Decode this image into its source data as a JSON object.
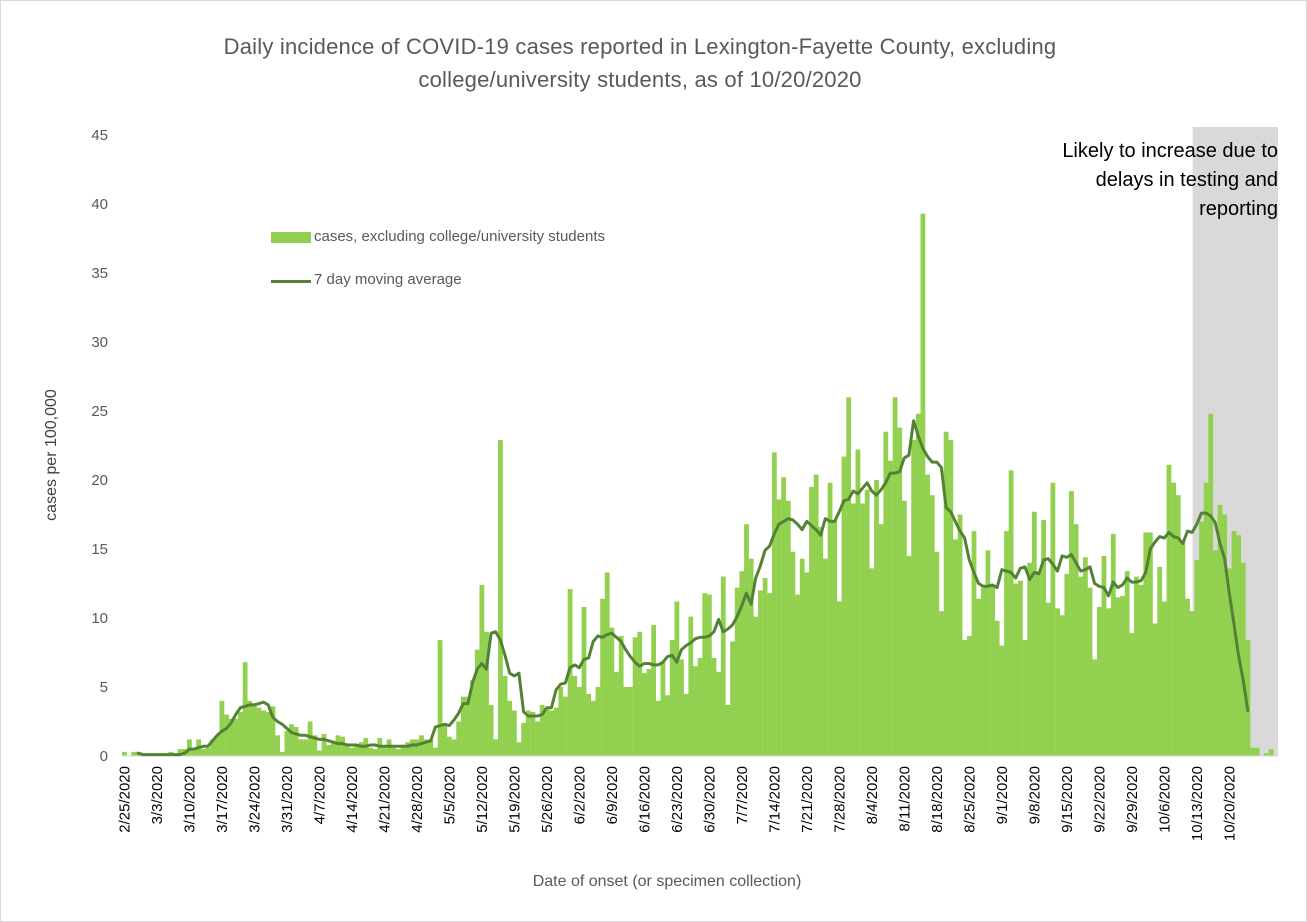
{
  "chart_data": {
    "type": "bar",
    "title": "Daily incidence of COVID-19 cases reported in Lexington-Fayette County, excluding college/university students, as of 10/20/2020",
    "title_lines": [
      "Daily incidence of COVID-19 cases reported in Lexington-Fayette County, excluding",
      "college/university students, as of 10/20/2020"
    ],
    "xlabel": "Date of onset (or specimen collection)",
    "ylabel": "cases per 100,000",
    "ylim": [
      0,
      45
    ],
    "yticks": [
      "0",
      "5",
      "10",
      "15",
      "20",
      "25",
      "30",
      "35",
      "40",
      "45"
    ],
    "x_start": "2/25/2020",
    "x_end": "10/20/2020",
    "xtick_labels": [
      "2/25/2020",
      "3/3/2020",
      "3/10/2020",
      "3/17/2020",
      "3/24/2020",
      "3/31/2020",
      "4/7/2020",
      "4/14/2020",
      "4/21/2020",
      "4/28/2020",
      "5/5/2020",
      "5/12/2020",
      "5/19/2020",
      "5/26/2020",
      "6/2/2020",
      "6/9/2020",
      "6/16/2020",
      "6/23/2020",
      "6/30/2020",
      "7/7/2020",
      "7/14/2020",
      "7/21/2020",
      "7/28/2020",
      "8/4/2020",
      "8/11/2020",
      "8/18/2020",
      "8/25/2020",
      "9/1/2020",
      "9/8/2020",
      "9/15/2020",
      "9/22/2020",
      "9/29/2020",
      "10/6/2020",
      "10/13/2020",
      "10/20/2020"
    ],
    "grid": false,
    "legend_position": "upper-left",
    "series": [
      {
        "name": "cases, excluding college/university students",
        "kind": "bar",
        "color": "#92d050",
        "values": [
          0.3,
          0,
          0.3,
          0.3,
          0,
          0,
          0,
          0,
          0.2,
          0,
          0.3,
          0,
          0.5,
          0.5,
          1.2,
          0.6,
          1.2,
          0.5,
          0.6,
          1.2,
          1.5,
          4,
          3,
          2.7,
          2.7,
          3.2,
          6.8,
          4,
          3.7,
          3.5,
          3.3,
          3.2,
          3.6,
          1.5,
          0.3,
          1.8,
          2.3,
          2.1,
          1.2,
          1.2,
          2.5,
          1.5,
          0.4,
          1.6,
          0.8,
          1,
          1.5,
          1.4,
          0.7,
          0.6,
          0.8,
          1,
          1.3,
          0.6,
          0.5,
          1.3,
          0.6,
          1.2,
          0.6,
          0.5,
          0.8,
          1,
          1.2,
          1.2,
          1.5,
          1.2,
          1.2,
          0.6,
          8.4,
          2.2,
          1.4,
          1.2,
          2.5,
          4.3,
          4.3,
          5.5,
          7.7,
          12.4,
          9,
          3.7,
          1.2,
          22.9,
          5.8,
          4,
          3.3,
          1,
          2.4,
          3.3,
          3.2,
          2.5,
          3.7,
          3.4,
          3.3,
          3.5,
          5,
          4.3,
          12.1,
          5.8,
          5,
          10.8,
          4.5,
          4,
          5,
          11.4,
          13.3,
          9.3,
          6.1,
          8.7,
          5,
          5,
          8.6,
          9,
          6,
          6.3,
          9.5,
          4,
          6.8,
          4.4,
          8.4,
          11.2,
          7,
          4.5,
          10.1,
          6.5,
          7.1,
          11.8,
          11.7,
          7.1,
          6.1,
          13,
          3.7,
          8.3,
          12.2,
          13.4,
          16.8,
          14.3,
          10.1,
          12,
          12.9,
          11.8,
          22,
          18.6,
          20.2,
          18.5,
          14.8,
          11.7,
          14.3,
          13.3,
          19.5,
          20.4,
          16.6,
          14.3,
          19.8,
          17.1,
          11.2,
          21.7,
          26,
          18.3,
          22.2,
          18.3,
          19.3,
          13.6,
          20,
          16.8,
          23.5,
          21.4,
          26,
          23.8,
          18.5,
          14.5,
          22.9,
          24.8,
          39.3,
          20.4,
          18.9,
          14.8,
          10.5,
          23.5,
          22.9,
          15.7,
          17.5,
          8.4,
          8.7,
          16.3,
          11.4,
          12.2,
          14.9,
          12.4,
          9.8,
          8,
          16.3,
          20.7,
          12.5,
          12.7,
          8.4,
          14,
          17.7,
          13.4,
          17.1,
          11.1,
          19.8,
          10.7,
          10.2,
          13.2,
          19.2,
          16.8,
          13,
          14.4,
          12.2,
          7,
          10.8,
          14.5,
          10.7,
          16.1,
          11.5,
          11.6,
          13.4,
          8.9,
          13,
          12.4,
          16.2,
          16.2,
          9.6,
          13.7,
          11.2,
          21.1,
          19.8,
          18.9,
          15.5,
          11.4,
          10.5,
          14.2,
          17,
          19.8,
          24.8,
          14.9,
          18.2,
          17.5,
          13.6,
          16.3,
          16,
          14,
          8.4,
          0.6,
          0.6,
          0,
          0.2,
          0.5,
          0
        ]
      },
      {
        "name": "7 day moving average",
        "kind": "line",
        "color": "#548235",
        "values": [
          null,
          null,
          null,
          0.2,
          0.1,
          0.1,
          0.1,
          0.1,
          0.1,
          0.1,
          0.1,
          0.1,
          0.1,
          0.2,
          0.5,
          0.5,
          0.6,
          0.7,
          0.7,
          1.1,
          1.5,
          1.8,
          2,
          2.4,
          3,
          3.5,
          3.6,
          3.7,
          3.7,
          3.8,
          3.9,
          3.7,
          2.8,
          2.5,
          2.3,
          2,
          1.7,
          1.6,
          1.5,
          1.5,
          1.4,
          1.3,
          1.2,
          1.2,
          1.1,
          1,
          0.9,
          0.9,
          0.8,
          0.8,
          0.8,
          0.7,
          0.7,
          0.8,
          0.8,
          0.7,
          0.7,
          0.7,
          0.7,
          0.7,
          0.7,
          0.7,
          0.8,
          0.8,
          0.9,
          1,
          1.1,
          2.1,
          2.2,
          2.3,
          2.2,
          2.6,
          3.1,
          3.8,
          3.8,
          5.3,
          6.3,
          6.7,
          6.3,
          8.9,
          9,
          8.4,
          7.3,
          6,
          5.8,
          6,
          3.2,
          2.9,
          2.9,
          2.9,
          3,
          3.5,
          3.5,
          4.8,
          5.2,
          5.3,
          6.4,
          6.6,
          6.4,
          7,
          7.1,
          8.3,
          8.7,
          8.6,
          8.8,
          8.9,
          8.6,
          8.3,
          7.7,
          7.2,
          6.8,
          6.5,
          6.7,
          6.7,
          6.6,
          6.6,
          6.8,
          7.2,
          7.3,
          6.8,
          7.7,
          8,
          8.2,
          8.5,
          8.6,
          8.6,
          8.7,
          9,
          9.9,
          9,
          9.2,
          9.5,
          10.1,
          10.9,
          11.8,
          11,
          12.9,
          13.8,
          14.9,
          15.2,
          16.1,
          16.8,
          17,
          17.2,
          17.1,
          16.8,
          16.4,
          17,
          16.7,
          16.4,
          16,
          17.2,
          17,
          17,
          17.7,
          18.5,
          18.6,
          19.2,
          19,
          19.4,
          19.8,
          19.2,
          18.9,
          19.3,
          19.8,
          20.5,
          20.5,
          20.6,
          21.6,
          21.8,
          24.3,
          23.2,
          22.3,
          21.7,
          21.3,
          21.3,
          20.9,
          18,
          17.7,
          17,
          16.3,
          15.8,
          14.2,
          13.3,
          12.5,
          12.3,
          12.3,
          12.4,
          12.2,
          13.5,
          13.4,
          13.3,
          12.9,
          13.6,
          13.7,
          12.8,
          13.3,
          13.2,
          14.2,
          14.3,
          13.9,
          13.4,
          14.5,
          14.4,
          14.6,
          14,
          13.4,
          13.5,
          13.7,
          12.5,
          12.3,
          12.2,
          11.6,
          12.6,
          12.2,
          12.4,
          12.9,
          12.6,
          12.6,
          12.7,
          13.3,
          15,
          15.5,
          15.9,
          15.8,
          16.2,
          15.9,
          15.8,
          15.4,
          16.3,
          16.2,
          16.8,
          17.6,
          17.6,
          17.4,
          16.9,
          15.4,
          14.3,
          11.8,
          9.6,
          7.3,
          5.5,
          3.3
        ]
      }
    ],
    "shaded_region": {
      "start": "10/13/2020",
      "end": "10/20/2020",
      "color": "#d9d9d9",
      "label_lines": [
        "Likely to increase due to",
        "delays in testing and",
        "reporting"
      ]
    }
  }
}
